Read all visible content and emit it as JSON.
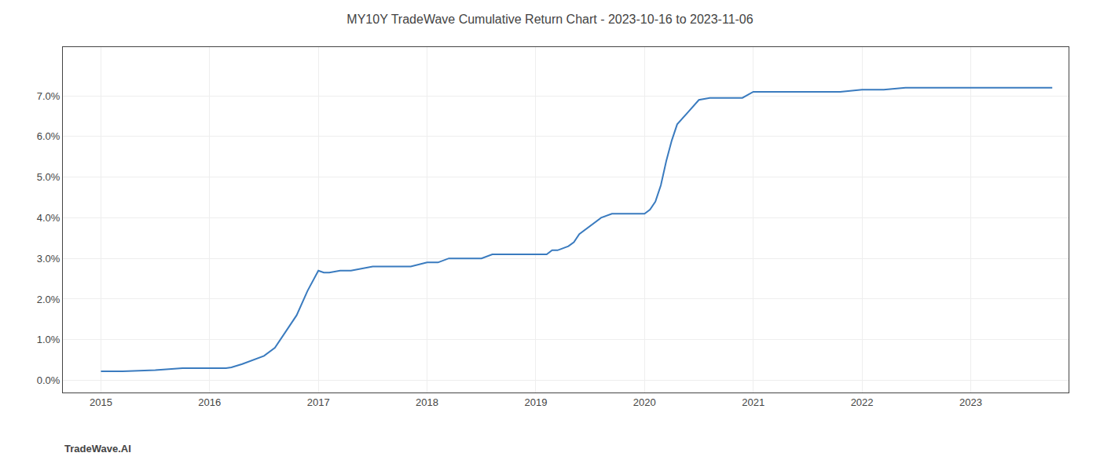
{
  "chart_data": {
    "type": "line",
    "title": "MY10Y TradeWave Cumulative Return Chart - 2023-10-16 to 2023-11-06",
    "annotations": [
      "TradeWave.AI"
    ],
    "x": [
      2015.0,
      2015.2,
      2015.5,
      2015.75,
      2016.0,
      2016.05,
      2016.1,
      2016.15,
      2016.2,
      2016.3,
      2016.5,
      2016.6,
      2016.7,
      2016.8,
      2016.9,
      2017.0,
      2017.05,
      2017.1,
      2017.2,
      2017.3,
      2017.5,
      2017.6,
      2017.7,
      2017.85,
      2018.0,
      2018.1,
      2018.2,
      2018.4,
      2018.5,
      2018.6,
      2018.7,
      2018.8,
      2018.9,
      2019.0,
      2019.05,
      2019.1,
      2019.15,
      2019.2,
      2019.3,
      2019.35,
      2019.4,
      2019.5,
      2019.55,
      2019.6,
      2019.7,
      2019.8,
      2019.85,
      2019.9,
      2019.95,
      2020.0,
      2020.05,
      2020.1,
      2020.15,
      2020.2,
      2020.25,
      2020.3,
      2020.4,
      2020.5,
      2020.6,
      2020.7,
      2020.8,
      2020.9,
      2021.0,
      2021.2,
      2021.4,
      2021.6,
      2021.8,
      2022.0,
      2022.2,
      2022.4,
      2022.6,
      2022.8,
      2023.0,
      2023.2,
      2023.5,
      2023.75
    ],
    "values": [
      0.0022,
      0.0022,
      0.0025,
      0.003,
      0.003,
      0.003,
      0.003,
      0.003,
      0.0032,
      0.004,
      0.006,
      0.008,
      0.012,
      0.016,
      0.022,
      0.027,
      0.0265,
      0.0265,
      0.027,
      0.027,
      0.028,
      0.028,
      0.028,
      0.028,
      0.029,
      0.029,
      0.03,
      0.03,
      0.03,
      0.031,
      0.031,
      0.031,
      0.031,
      0.031,
      0.031,
      0.031,
      0.032,
      0.032,
      0.033,
      0.034,
      0.036,
      0.038,
      0.039,
      0.04,
      0.041,
      0.041,
      0.041,
      0.041,
      0.041,
      0.041,
      0.042,
      0.044,
      0.048,
      0.054,
      0.059,
      0.063,
      0.066,
      0.069,
      0.0695,
      0.0695,
      0.0695,
      0.0695,
      0.071,
      0.071,
      0.071,
      0.071,
      0.071,
      0.0715,
      0.0715,
      0.072,
      0.072,
      0.072,
      0.072,
      0.072,
      0.072,
      0.072
    ],
    "color": "#3a7bbf",
    "xlim": [
      2014.65,
      2023.9
    ],
    "ylim": [
      -0.003,
      0.082
    ],
    "xticks": [
      2015,
      2016,
      2017,
      2018,
      2019,
      2020,
      2021,
      2022,
      2023
    ],
    "yticks": [
      {
        "value": 0.0,
        "label": "0.0%"
      },
      {
        "value": 0.01,
        "label": "1.0%"
      },
      {
        "value": 0.02,
        "label": "2.0%"
      },
      {
        "value": 0.03,
        "label": "3.0%"
      },
      {
        "value": 0.04,
        "label": "4.0%"
      },
      {
        "value": 0.05,
        "label": "5.0%"
      },
      {
        "value": 0.06,
        "label": "6.0%"
      },
      {
        "value": 0.07,
        "label": "7.0%"
      }
    ],
    "grid": true
  }
}
